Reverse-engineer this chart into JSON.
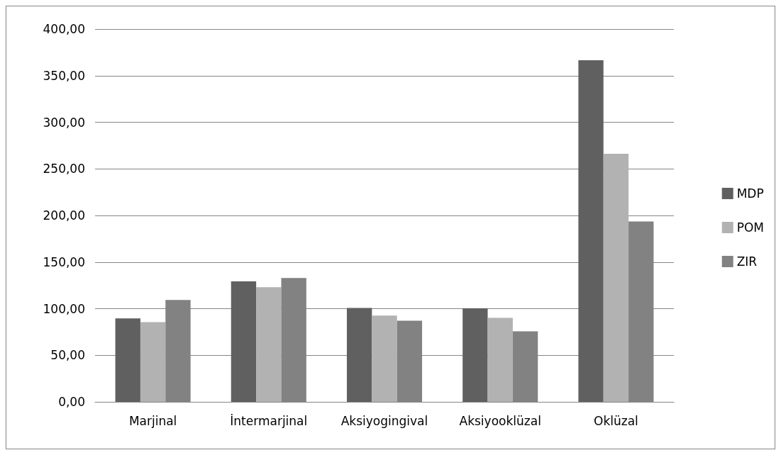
{
  "chart_data": {
    "type": "bar",
    "categories": [
      "Marjinal",
      "İntermarjinal",
      "Aksiyogingival",
      "Aksiyooklüzal",
      "Oklüzal"
    ],
    "series": [
      {
        "name": "MDP",
        "color": "#606060",
        "values": [
          89.5,
          129.3,
          100.7,
          100.4,
          366.5
        ]
      },
      {
        "name": "POM",
        "color": "#b2b2b2",
        "values": [
          85.6,
          123.0,
          92.5,
          90.1,
          266.2
        ]
      },
      {
        "name": "ZIR",
        "color": "#828282",
        "values": [
          109.4,
          132.9,
          87.1,
          75.7,
          193.5
        ]
      }
    ],
    "ylim": [
      0,
      400
    ],
    "yticks": [
      {
        "value": 0,
        "label": "0,00"
      },
      {
        "value": 50,
        "label": "50,00"
      },
      {
        "value": 100,
        "label": "100,00"
      },
      {
        "value": 150,
        "label": "150,00"
      },
      {
        "value": 200,
        "label": "200,00"
      },
      {
        "value": 250,
        "label": "250,00"
      },
      {
        "value": 300,
        "label": "300,00"
      },
      {
        "value": 350,
        "label": "350,00"
      },
      {
        "value": 400,
        "label": "400,00"
      }
    ],
    "grid": "y",
    "legend": "right"
  }
}
